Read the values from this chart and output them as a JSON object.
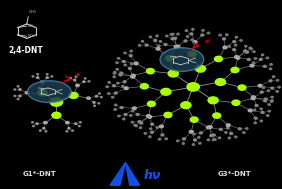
{
  "background_color": "#000000",
  "title_text": "2,4-DNT",
  "label_g1": "G1*-DNT",
  "label_g3": "G3*-DNT",
  "label_hv": "hν",
  "label_eminus": "e⁻",
  "node_color": "#aaff00",
  "node_color2": "#ccff00",
  "branch_color": "#999999",
  "atom_color": "#aaaaaa",
  "arrow_color": "#cc0000",
  "hv_color": "#1155ee",
  "ellipse_facecolor": "#1a3d4d",
  "ellipse_edgecolor": "#4488aa",
  "text_color": "#ffffff",
  "label_color": "#dddddd",
  "figsize": [
    2.82,
    1.89
  ],
  "dpi": 100
}
